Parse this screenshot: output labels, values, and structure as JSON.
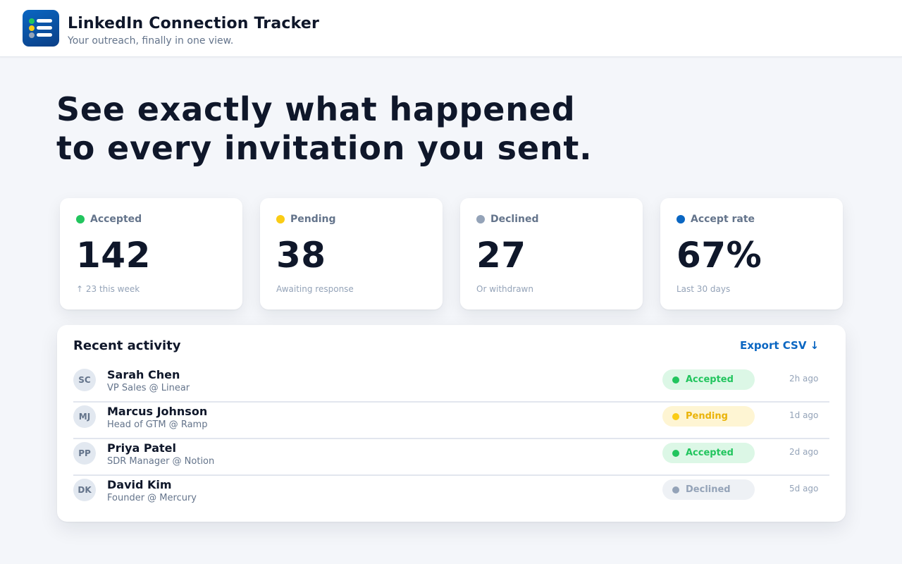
{
  "header": {
    "app_title": "LinkedIn Connection Tracker",
    "subtitle": "Your outreach, finally in one view."
  },
  "hero": {
    "line1": "See exactly what happened",
    "line2": "to every invitation you sent."
  },
  "stats": [
    {
      "label": "Accepted",
      "value": "142",
      "note": "↑ 23 this week",
      "color": "#22c55e"
    },
    {
      "label": "Pending",
      "value": "38",
      "note": "Awaiting response",
      "color": "#facc15"
    },
    {
      "label": "Declined",
      "value": "27",
      "note": "Or withdrawn",
      "color": "#94a3b8"
    },
    {
      "label": "Accept rate",
      "value": "67%",
      "note": "Last 30 days",
      "color": "#0a66c2"
    }
  ],
  "activity": {
    "title": "Recent activity",
    "export_label": "Export CSV ↓",
    "rows": [
      {
        "initials": "SC",
        "name": "Sarah Chen",
        "role": "VP Sales @ Linear",
        "status": "Accepted",
        "time": "2h ago"
      },
      {
        "initials": "MJ",
        "name": "Marcus Johnson",
        "role": "Head of GTM @ Ramp",
        "status": "Pending",
        "time": "1d ago"
      },
      {
        "initials": "PP",
        "name": "Priya Patel",
        "role": "SDR Manager @ Notion",
        "status": "Accepted",
        "time": "2d ago"
      },
      {
        "initials": "DK",
        "name": "David Kim",
        "role": "Founder @ Mercury",
        "status": "Declined",
        "time": "5d ago"
      }
    ]
  },
  "status_colors": {
    "Accepted": {
      "text": "#22c55e",
      "bg": "#dcf7e6",
      "dot": "#22c55e"
    },
    "Pending": {
      "text": "#eab308",
      "bg": "#fef5d3",
      "dot": "#facc15"
    },
    "Declined": {
      "text": "#94a3b8",
      "bg": "#eef1f5",
      "dot": "#94a3b8"
    }
  },
  "brand_colors": {
    "primary": "#0a66c2",
    "text": "#0f172a",
    "muted": "#64748b"
  }
}
